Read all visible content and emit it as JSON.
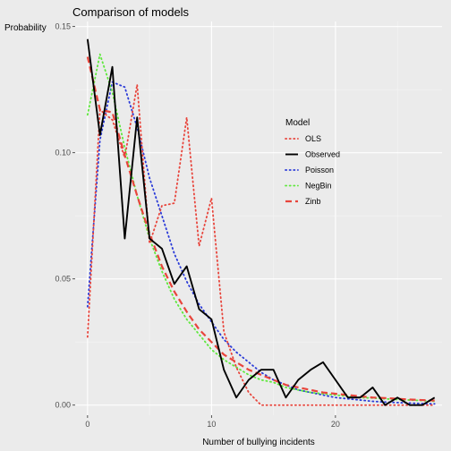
{
  "chart_data": {
    "type": "line",
    "title": "Comparison of models",
    "xlabel": "Number of bullying incidents",
    "ylabel": "Probability",
    "xlim": [
      -1,
      28.6
    ],
    "ylim": [
      -0.004,
      0.152
    ],
    "x_ticks": [
      0,
      10,
      20
    ],
    "y_ticks": [
      0.0,
      0.05,
      0.1,
      0.15
    ],
    "x_tick_labels": [
      "0",
      "10",
      "20"
    ],
    "y_tick_labels": [
      "0.00",
      "0.05",
      "0.10",
      "0.15"
    ],
    "grid": true,
    "legend": {
      "title": "Model",
      "position": "right-inside"
    },
    "series": [
      {
        "name": "OLS",
        "color": "#e8453c",
        "style": "dotted",
        "x": [
          0,
          1,
          2,
          3,
          4,
          5,
          6,
          7,
          8,
          9,
          10,
          11,
          12,
          13,
          14,
          15,
          16,
          17,
          18,
          19,
          20,
          21,
          22,
          23,
          24,
          25,
          26,
          27,
          28
        ],
        "y": [
          0.027,
          0.117,
          0.113,
          0.098,
          0.127,
          0.064,
          0.079,
          0.08,
          0.114,
          0.063,
          0.082,
          0.029,
          0.015,
          0.005,
          0.0,
          0.0,
          0.0,
          0.0,
          0.0,
          0.0,
          0.0,
          0.0,
          0.0,
          0.0,
          0.0,
          0.0,
          0.0,
          0.0,
          0.0
        ]
      },
      {
        "name": "Observed",
        "color": "#000000",
        "style": "solid",
        "x": [
          0,
          1,
          2,
          3,
          4,
          5,
          6,
          7,
          8,
          9,
          10,
          11,
          12,
          13,
          14,
          15,
          16,
          17,
          18,
          19,
          20,
          21,
          22,
          23,
          24,
          25,
          26,
          27,
          28
        ],
        "y": [
          0.145,
          0.107,
          0.134,
          0.066,
          0.114,
          0.066,
          0.062,
          0.048,
          0.055,
          0.038,
          0.034,
          0.014,
          0.003,
          0.01,
          0.014,
          0.014,
          0.003,
          0.01,
          0.014,
          0.017,
          0.01,
          0.003,
          0.003,
          0.007,
          0.0,
          0.003,
          0.0,
          0.0,
          0.003
        ]
      },
      {
        "name": "Poisson",
        "color": "#2b3bd8",
        "style": "dotted",
        "x": [
          0,
          1,
          2,
          3,
          4,
          5,
          6,
          7,
          8,
          9,
          10,
          11,
          12,
          13,
          14,
          15,
          16,
          17,
          18,
          19,
          20,
          21,
          22,
          23,
          24,
          25,
          26,
          27,
          28
        ],
        "y": [
          0.039,
          0.105,
          0.128,
          0.126,
          0.11,
          0.09,
          0.075,
          0.06,
          0.049,
          0.04,
          0.033,
          0.026,
          0.021,
          0.017,
          0.013,
          0.01,
          0.008,
          0.006,
          0.005,
          0.004,
          0.003,
          0.0025,
          0.002,
          0.0015,
          0.0012,
          0.001,
          0.0008,
          0.0006,
          0.0005
        ]
      },
      {
        "name": "NegBin",
        "color": "#5ee83c",
        "style": "dotted",
        "x": [
          0,
          1,
          2,
          3,
          4,
          5,
          6,
          7,
          8,
          9,
          10,
          11,
          12,
          13,
          14,
          15,
          16,
          17,
          18,
          19,
          20,
          21,
          22,
          23,
          24,
          25,
          26,
          27,
          28
        ],
        "y": [
          0.115,
          0.139,
          0.124,
          0.102,
          0.083,
          0.066,
          0.053,
          0.042,
          0.034,
          0.028,
          0.022,
          0.018,
          0.015,
          0.012,
          0.01,
          0.009,
          0.007,
          0.006,
          0.005,
          0.0045,
          0.004,
          0.0035,
          0.003,
          0.0028,
          0.0025,
          0.0022,
          0.002,
          0.0018,
          0.0015
        ]
      },
      {
        "name": "Zinb",
        "color": "#e8453c",
        "style": "dashed",
        "x": [
          0,
          1,
          2,
          3,
          4,
          5,
          6,
          7,
          8,
          9,
          10,
          11,
          12,
          13,
          14,
          15,
          16,
          17,
          18,
          19,
          20,
          21,
          22,
          23,
          24,
          25,
          26,
          27,
          28
        ],
        "y": [
          0.138,
          0.117,
          0.116,
          0.099,
          0.083,
          0.068,
          0.055,
          0.045,
          0.037,
          0.03,
          0.025,
          0.02,
          0.017,
          0.014,
          0.012,
          0.01,
          0.008,
          0.007,
          0.006,
          0.005,
          0.0045,
          0.004,
          0.0035,
          0.003,
          0.0028,
          0.0025,
          0.0022,
          0.002,
          0.0018
        ]
      }
    ]
  }
}
